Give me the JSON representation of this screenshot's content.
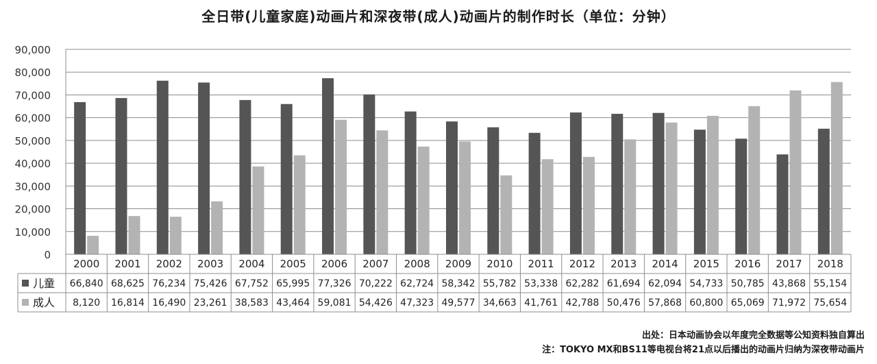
{
  "chart_data": {
    "type": "bar",
    "title": "全日带(儿童家庭)动画片和深夜带(成人)动画片的制作时长（单位：分钟）",
    "categories": [
      "2000",
      "2001",
      "2002",
      "2003",
      "2004",
      "2005",
      "2006",
      "2007",
      "2008",
      "2009",
      "2010",
      "2011",
      "2012",
      "2013",
      "2014",
      "2015",
      "2016",
      "2017",
      "2018"
    ],
    "series": [
      {
        "name": "儿童",
        "color": "#555555",
        "values": [
          66840,
          68625,
          76234,
          75426,
          67752,
          65995,
          77326,
          70222,
          62724,
          58342,
          55782,
          53338,
          62282,
          61694,
          62094,
          54733,
          50785,
          43868,
          55154
        ],
        "labels": [
          "66,840",
          "68,625",
          "76,234",
          "75,426",
          "67,752",
          "65,995",
          "77,326",
          "70,222",
          "62,724",
          "58,342",
          "55,782",
          "53,338",
          "62,282",
          "61,694",
          "62,094",
          "54,733",
          "50,785",
          "43,868",
          "55,154"
        ]
      },
      {
        "name": "成人",
        "color": "#b3b3b3",
        "values": [
          8120,
          16814,
          16490,
          23261,
          38583,
          43464,
          59081,
          54426,
          47323,
          49577,
          34663,
          41761,
          42788,
          50476,
          57868,
          60800,
          65069,
          71972,
          75654
        ],
        "labels": [
          "8,120",
          "16,814",
          "16,490",
          "23,261",
          "38,583",
          "43,464",
          "59,081",
          "54,426",
          "47,323",
          "49,577",
          "34,663",
          "41,761",
          "42,788",
          "50,476",
          "57,868",
          "60,800",
          "65,069",
          "71,972",
          "75,654"
        ]
      }
    ],
    "ylim": [
      0,
      90000
    ],
    "yticks": [
      "0",
      "10,000",
      "20,000",
      "30,000",
      "40,000",
      "50,000",
      "60,000",
      "70,000",
      "80,000",
      "90,000"
    ],
    "grid": true,
    "legend": "data-table",
    "source": "出处：日本动画协会以年度完全数据等公知资料独自算出",
    "note": "注：TOKYO MX和BS11等电视台将21点以后播出的动画片归纳为深夜带动画片"
  }
}
